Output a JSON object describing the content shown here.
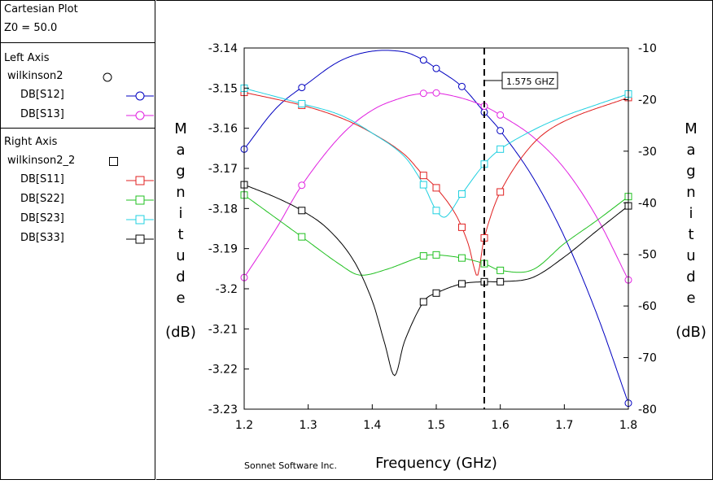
{
  "header": {
    "title": "Cartesian Plot",
    "z0": "Z0 = 50.0"
  },
  "legend": {
    "left_axis": {
      "title": "Left Axis",
      "file": "wilkinson2",
      "items": [
        {
          "label": "DB[S12]",
          "color": "#0000c0",
          "marker": "circle"
        },
        {
          "label": "DB[S13]",
          "color": "#e020e0",
          "marker": "circle"
        }
      ]
    },
    "right_axis": {
      "title": "Right Axis",
      "file": "wilkinson2_2",
      "items": [
        {
          "label": "DB[S11]",
          "color": "#e02020",
          "marker": "square"
        },
        {
          "label": "DB[S22]",
          "color": "#20c020",
          "marker": "square"
        },
        {
          "label": "DB[S23]",
          "color": "#20d0e0",
          "marker": "square"
        },
        {
          "label": "DB[S33]",
          "color": "#000000",
          "marker": "square"
        }
      ]
    }
  },
  "footer": {
    "credit": "Sonnet Software Inc."
  },
  "chart_data": {
    "type": "line",
    "xlabel": "Frequency (GHz)",
    "ylabel_left": "Magnitude",
    "ylabel_left_unit": "(dB)",
    "ylabel_right": "Magnitude",
    "ylabel_right_unit": "(dB)",
    "xlim": [
      1.2,
      1.8
    ],
    "ylim_left": [
      -3.23,
      -3.14
    ],
    "ylim_right": [
      -80,
      -10
    ],
    "x_ticks": [
      "1.2",
      "1.3",
      "1.4",
      "1.5",
      "1.6",
      "1.7",
      "1.8"
    ],
    "y_left_ticks": [
      "-3.14",
      "-3.15",
      "-3.16",
      "-3.17",
      "-3.18",
      "-3.19",
      "-3.2",
      "-3.21",
      "-3.22",
      "-3.23"
    ],
    "y_right_ticks": [
      "-10",
      "-20",
      "-30",
      "-40",
      "-50",
      "-60",
      "-70",
      "-80"
    ],
    "grid": false,
    "marker_line": {
      "x": 1.575,
      "label": "1.575 GHZ"
    },
    "series": [
      {
        "name": "DB[S12]",
        "axis": "left",
        "color": "#0000c0",
        "marker": "circle",
        "x": [
          1.2,
          1.25,
          1.3,
          1.35,
          1.4,
          1.45,
          1.48,
          1.5,
          1.54,
          1.575,
          1.6,
          1.65,
          1.7,
          1.75,
          1.8
        ],
        "y": [
          -3.1652,
          -3.155,
          -3.1487,
          -3.1432,
          -3.1408,
          -3.141,
          -3.143,
          -3.1451,
          -3.1496,
          -3.156,
          -3.1606,
          -3.172,
          -3.187,
          -3.206,
          -3.2285
        ],
        "markers_x": [
          1.2,
          1.29,
          1.48,
          1.5,
          1.54,
          1.575,
          1.6,
          1.8
        ]
      },
      {
        "name": "DB[S13]",
        "axis": "left",
        "color": "#e020e0",
        "marker": "circle",
        "x": [
          1.2,
          1.25,
          1.29,
          1.35,
          1.4,
          1.45,
          1.48,
          1.5,
          1.54,
          1.575,
          1.6,
          1.65,
          1.7,
          1.75,
          1.8
        ],
        "y": [
          -3.1972,
          -3.185,
          -3.1742,
          -3.162,
          -3.1555,
          -3.1522,
          -3.1513,
          -3.1512,
          -3.1525,
          -3.1545,
          -3.1567,
          -3.162,
          -3.17,
          -3.182,
          -3.1978
        ],
        "markers_x": [
          1.2,
          1.29,
          1.48,
          1.5,
          1.575,
          1.6,
          1.8
        ]
      },
      {
        "name": "DB[S11]",
        "axis": "right",
        "color": "#e02020",
        "marker": "square",
        "x": [
          1.2,
          1.29,
          1.35,
          1.4,
          1.45,
          1.48,
          1.5,
          1.53,
          1.55,
          1.56,
          1.565,
          1.575,
          1.6,
          1.65,
          1.7,
          1.8
        ],
        "y": [
          -18.6,
          -21.1,
          -23.5,
          -26.5,
          -30.6,
          -34.7,
          -37.1,
          -42.2,
          -48.0,
          -53.0,
          -54.0,
          -46.8,
          -37.9,
          -28.7,
          -24.2,
          -19.6
        ],
        "markers_x": [
          1.2,
          1.29,
          1.48,
          1.5,
          1.54,
          1.575,
          1.6,
          1.8
        ]
      },
      {
        "name": "DB[S22]",
        "axis": "right",
        "color": "#20c020",
        "marker": "square",
        "x": [
          1.2,
          1.25,
          1.29,
          1.35,
          1.38,
          1.42,
          1.48,
          1.5,
          1.54,
          1.575,
          1.6,
          1.65,
          1.7,
          1.75,
          1.8
        ],
        "y": [
          -38.5,
          -43.0,
          -46.6,
          -52.0,
          -54.0,
          -53.0,
          -50.3,
          -50.1,
          -50.7,
          -51.8,
          -53.1,
          -53.0,
          -47.9,
          -43.5,
          -38.8
        ],
        "markers_x": [
          1.2,
          1.29,
          1.48,
          1.5,
          1.54,
          1.575,
          1.6,
          1.8
        ]
      },
      {
        "name": "DB[S23]",
        "axis": "right",
        "color": "#20d0e0",
        "marker": "square",
        "x": [
          1.2,
          1.29,
          1.35,
          1.4,
          1.45,
          1.48,
          1.5,
          1.515,
          1.54,
          1.575,
          1.6,
          1.65,
          1.7,
          1.75,
          1.8
        ],
        "y": [
          -17.8,
          -20.8,
          -23.0,
          -26.5,
          -31.0,
          -36.5,
          -41.5,
          -42.7,
          -38.3,
          -32.5,
          -29.6,
          -26.0,
          -23.2,
          -21.0,
          -18.9
        ],
        "markers_x": [
          1.2,
          1.29,
          1.48,
          1.5,
          1.54,
          1.575,
          1.6,
          1.8
        ]
      },
      {
        "name": "DB[S33]",
        "axis": "right",
        "color": "#000000",
        "marker": "square",
        "x": [
          1.2,
          1.25,
          1.29,
          1.33,
          1.37,
          1.4,
          1.42,
          1.435,
          1.45,
          1.48,
          1.5,
          1.54,
          1.575,
          1.6,
          1.65,
          1.7,
          1.75,
          1.8
        ],
        "y": [
          -36.5,
          -39.0,
          -41.5,
          -45.0,
          -51.0,
          -59.0,
          -67.5,
          -73.5,
          -67.0,
          -59.2,
          -57.5,
          -55.7,
          -55.3,
          -55.3,
          -54.5,
          -50.5,
          -45.5,
          -40.6
        ],
        "markers_x": [
          1.2,
          1.29,
          1.48,
          1.5,
          1.54,
          1.575,
          1.6,
          1.8
        ]
      }
    ]
  }
}
